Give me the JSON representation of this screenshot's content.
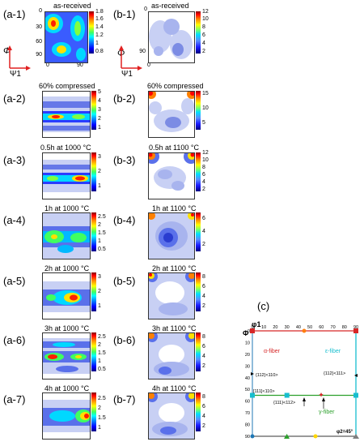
{
  "row_labels_a": [
    "(a-1)",
    "(a-2)",
    "(a-3)",
    "(a-4)",
    "(a-5)",
    "(a-6)",
    "(a-7)"
  ],
  "row_labels_b": [
    "(b-1)",
    "(b-2)",
    "(b-3)",
    "(b-4)",
    "(b-5)",
    "(b-6)",
    "(b-7)"
  ],
  "titles_a": [
    "as-received",
    "60% compressed",
    "0.5h at 1000 °C",
    "1h at 1000 °C",
    "2h at 1000 °C",
    "3h at 1000 °C",
    "4h at 1000 °C"
  ],
  "titles_b": [
    "as-received",
    "60% compressed",
    "0.5h at 1100 °C",
    "1h at 1100 °C",
    "2h at 1100 °C",
    "3h at 1100 °C",
    "4h at 1100 °C"
  ],
  "axes": {
    "phi": "Φ",
    "psi1": "Ψ1",
    "y_ticks": [
      "0",
      "30",
      "60",
      "90"
    ],
    "x_ticks": [
      "0",
      "90"
    ],
    "b_y_ticks": [
      "0",
      "90"
    ],
    "b_x_ticks": [
      "0"
    ]
  },
  "colorbars_a": [
    [
      "1.8",
      "1.6",
      "1.4",
      "1.2",
      "1",
      "0.8"
    ],
    [
      "5",
      "4",
      "3",
      "2",
      "1"
    ],
    [
      "3",
      "2",
      "1"
    ],
    [
      "2.5",
      "2",
      "1.5",
      "1",
      "0.5"
    ],
    [
      "3",
      "2",
      "1"
    ],
    [
      "2.5",
      "2",
      "1.5",
      "1",
      "0.5"
    ],
    [
      "2.5",
      "2",
      "1.5",
      "1"
    ]
  ],
  "colorbars_b": [
    [
      "12",
      "10",
      "8",
      "6",
      "4",
      "2"
    ],
    [
      "15",
      "10",
      "5"
    ],
    [
      "12",
      "10",
      "8",
      "6",
      "4",
      "2"
    ],
    [
      "6",
      "4",
      "2"
    ],
    [
      "8",
      "6",
      "4",
      "2"
    ],
    [
      "8",
      "6",
      "4",
      "2"
    ],
    [
      "8",
      "6",
      "4",
      "2"
    ]
  ],
  "panel_c": {
    "label": "(c)",
    "phi1": "φ1",
    "phi": "Φ",
    "top_ticks": [
      "0",
      "10",
      "20",
      "30",
      "40",
      "50",
      "60",
      "70",
      "80",
      "90"
    ],
    "left_ticks": [
      "0",
      "10",
      "20",
      "30",
      "40",
      "50",
      "60",
      "70",
      "80",
      "90"
    ],
    "alpha_fiber": "α-fiber",
    "epsilon_fiber": "ε-fiber",
    "gamma_fiber": "γ-fiber",
    "comp_112_110": "{112}<110>",
    "comp_112_111": "{112}<111>",
    "comp_111_110": "[111]<110>",
    "comp_111_112": "{111}<112>",
    "phi2": "φ2=45°",
    "colors": {
      "alpha": "#d62728",
      "epsilon": "#17becf",
      "gamma": "#2ca02c"
    }
  }
}
